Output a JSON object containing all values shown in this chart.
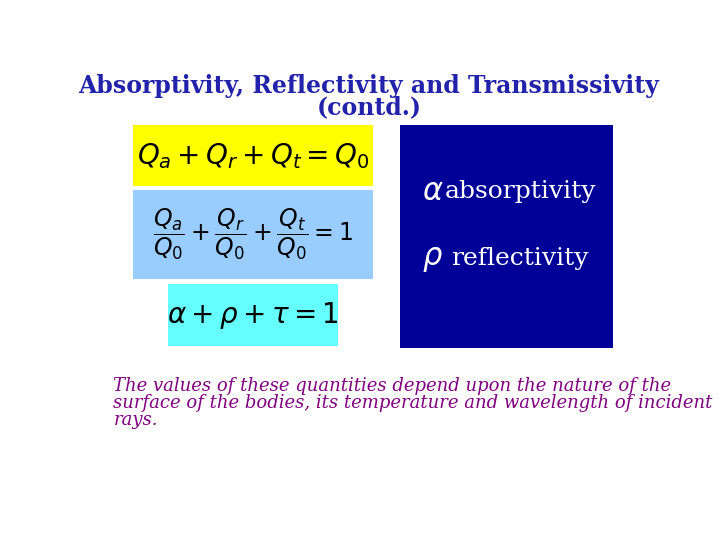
{
  "title_line1": "Absorptivity, Reflectivity and Transmissivity",
  "title_line2": "(contd.)",
  "title_color": "#2222AA",
  "title_fontsize": 17,
  "bg_color": "#FFFFFF",
  "yellow_bg": "#FFFF00",
  "blue_bg": "#99CCFF",
  "cyan_bg": "#66FFFF",
  "dark_blue_bg": "#000099",
  "eq1_latex": "$Q_a + Q_r + Q_t = Q_0$",
  "eq2_latex": "$\\dfrac{Q_a}{Q_0} + \\dfrac{Q_r}{Q_0} + \\dfrac{Q_t}{Q_0} = 1$",
  "eq3_latex": "$\\alpha + \\rho + \\tau = 1$",
  "label_alpha": "$\\alpha$",
  "label_rho": "$\\rho$",
  "text_absorptivity": "absorptivity",
  "text_reflectivity": "reflectivity",
  "white": "#FFFFFF",
  "body_lines": [
    "The values of these quantities depend upon the nature of the",
    "surface of the bodies, its temperature and wavelength of incident",
    "rays."
  ],
  "body_color": "#800080",
  "body_fontsize": 13
}
